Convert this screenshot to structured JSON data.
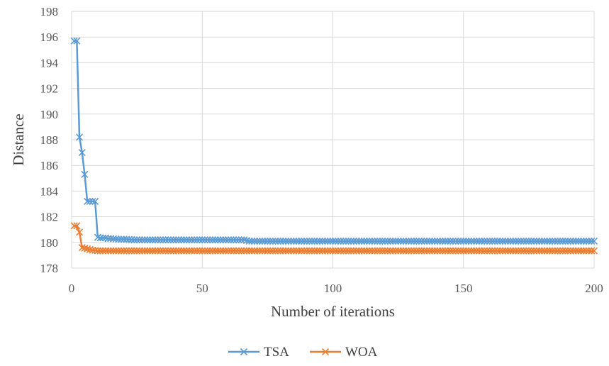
{
  "chart_data": {
    "type": "line",
    "xlabel": "Number of iterations",
    "ylabel": "Distance",
    "xlim": [
      0,
      200
    ],
    "ylim": [
      178,
      198
    ],
    "x_ticks": [
      0,
      50,
      100,
      150,
      200
    ],
    "y_ticks": [
      178,
      180,
      182,
      184,
      186,
      188,
      190,
      192,
      194,
      196,
      198
    ],
    "grid": true,
    "legend_position": "bottom",
    "marker": "x",
    "series": [
      {
        "name": "TSA",
        "color": "#5B9BD5",
        "points": [
          [
            1,
            195.7
          ],
          [
            2,
            195.7
          ],
          [
            3,
            188.2
          ],
          [
            4,
            187.0
          ],
          [
            5,
            185.3
          ],
          [
            6,
            183.2
          ],
          [
            7,
            183.2
          ],
          [
            8,
            183.2
          ],
          [
            9,
            183.2
          ],
          [
            10,
            180.4
          ],
          [
            11,
            180.35
          ],
          [
            12,
            180.35
          ],
          [
            13,
            180.35
          ],
          [
            14,
            180.3
          ],
          [
            15,
            180.3
          ],
          [
            18,
            180.25
          ],
          [
            20,
            180.25
          ],
          [
            24,
            180.2
          ],
          [
            26,
            180.2
          ],
          [
            66,
            180.2
          ],
          [
            68,
            180.1
          ],
          [
            200,
            180.1
          ]
        ]
      },
      {
        "name": "WOA",
        "color": "#ED7D31",
        "points": [
          [
            1,
            181.3
          ],
          [
            2,
            181.3
          ],
          [
            3,
            180.8
          ],
          [
            4,
            179.6
          ],
          [
            5,
            179.55
          ],
          [
            6,
            179.5
          ],
          [
            7,
            179.45
          ],
          [
            8,
            179.4
          ],
          [
            10,
            179.35
          ],
          [
            200,
            179.35
          ]
        ]
      }
    ]
  }
}
